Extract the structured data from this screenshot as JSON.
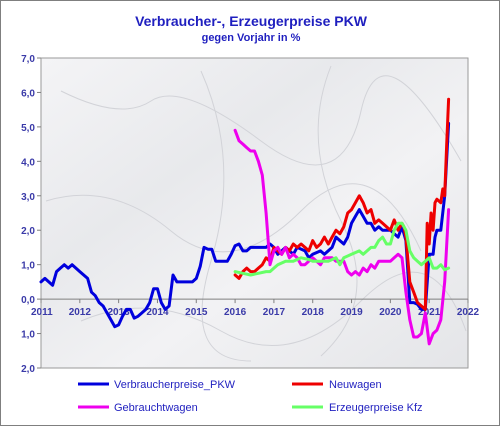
{
  "chart_data": {
    "type": "line",
    "title": "Verbraucher-, Erzeugerpreise PKW",
    "subtitle": "gegen Vorjahr in %",
    "ylim": [
      -2.0,
      7.0
    ],
    "y_ticks": [
      7.0,
      6.0,
      5.0,
      4.0,
      3.0,
      2.0,
      1.0,
      0.0,
      -1.0,
      -2.0
    ],
    "y_tick_labels": [
      "7,0",
      "6,0",
      "5,0",
      "4,0",
      "3,0",
      "2,0",
      "1,0",
      "0,0",
      "1,0",
      "2,0"
    ],
    "xlim": [
      2011,
      2022
    ],
    "x_ticks": [
      2011,
      2012,
      2013,
      2014,
      2015,
      2016,
      2017,
      2018,
      2019,
      2020,
      2021,
      2022
    ],
    "x_tick_labels": [
      "2011",
      "2012",
      "2013",
      "2014",
      "2015",
      "2016",
      "2017",
      "2018",
      "2019",
      "2020",
      "2021",
      "2022"
    ],
    "grid": false,
    "legend_position": "bottom",
    "series": [
      {
        "name": "Verbraucherpreise_PKW",
        "color": "#0000dd",
        "points": [
          [
            2011.0,
            0.5
          ],
          [
            2011.1,
            0.6
          ],
          [
            2011.2,
            0.5
          ],
          [
            2011.3,
            0.4
          ],
          [
            2011.4,
            0.8
          ],
          [
            2011.5,
            0.9
          ],
          [
            2011.6,
            1.0
          ],
          [
            2011.7,
            0.9
          ],
          [
            2011.8,
            1.0
          ],
          [
            2011.9,
            0.9
          ],
          [
            2012.0,
            0.8
          ],
          [
            2012.2,
            0.6
          ],
          [
            2012.3,
            0.2
          ],
          [
            2012.4,
            0.1
          ],
          [
            2012.5,
            -0.1
          ],
          [
            2012.6,
            -0.2
          ],
          [
            2012.7,
            -0.4
          ],
          [
            2012.8,
            -0.6
          ],
          [
            2012.9,
            -0.8
          ],
          [
            2013.0,
            -0.75
          ],
          [
            2013.1,
            -0.5
          ],
          [
            2013.2,
            -0.3
          ],
          [
            2013.3,
            -0.3
          ],
          [
            2013.4,
            -0.55
          ],
          [
            2013.5,
            -0.5
          ],
          [
            2013.6,
            -0.4
          ],
          [
            2013.7,
            -0.3
          ],
          [
            2013.8,
            -0.1
          ],
          [
            2013.9,
            0.3
          ],
          [
            2014.0,
            0.3
          ],
          [
            2014.1,
            -0.1
          ],
          [
            2014.2,
            -0.3
          ],
          [
            2014.3,
            -0.2
          ],
          [
            2014.4,
            0.7
          ],
          [
            2014.5,
            0.5
          ],
          [
            2014.7,
            0.5
          ],
          [
            2014.9,
            0.5
          ],
          [
            2015.0,
            0.6
          ],
          [
            2015.1,
            0.95
          ],
          [
            2015.2,
            1.5
          ],
          [
            2015.3,
            1.45
          ],
          [
            2015.4,
            1.45
          ],
          [
            2015.5,
            1.1
          ],
          [
            2015.6,
            1.1
          ],
          [
            2015.8,
            1.1
          ],
          [
            2015.9,
            1.3
          ],
          [
            2016.0,
            1.55
          ],
          [
            2016.1,
            1.6
          ],
          [
            2016.2,
            1.4
          ],
          [
            2016.3,
            1.4
          ],
          [
            2016.4,
            1.5
          ],
          [
            2016.6,
            1.5
          ],
          [
            2016.8,
            1.5
          ],
          [
            2016.9,
            1.6
          ],
          [
            2017.0,
            1.5
          ],
          [
            2017.1,
            1.3
          ],
          [
            2017.2,
            1.4
          ],
          [
            2017.3,
            1.5
          ],
          [
            2017.5,
            1.3
          ],
          [
            2017.6,
            1.5
          ],
          [
            2017.8,
            1.4
          ],
          [
            2017.9,
            1.2
          ],
          [
            2018.0,
            1.3
          ],
          [
            2018.2,
            1.4
          ],
          [
            2018.3,
            1.3
          ],
          [
            2018.5,
            1.5
          ],
          [
            2018.6,
            1.8
          ],
          [
            2018.7,
            1.7
          ],
          [
            2018.8,
            1.6
          ],
          [
            2018.9,
            1.8
          ],
          [
            2019.0,
            2.2
          ],
          [
            2019.1,
            2.4
          ],
          [
            2019.2,
            2.6
          ],
          [
            2019.3,
            2.4
          ],
          [
            2019.4,
            2.2
          ],
          [
            2019.5,
            2.2
          ],
          [
            2019.6,
            2.0
          ],
          [
            2019.7,
            2.1
          ],
          [
            2019.8,
            2.0
          ],
          [
            2019.9,
            2.0
          ],
          [
            2020.0,
            2.0
          ],
          [
            2020.1,
            1.9
          ],
          [
            2020.2,
            1.8
          ],
          [
            2020.3,
            2.1
          ],
          [
            2020.4,
            1.7
          ],
          [
            2020.5,
            -0.1
          ],
          [
            2020.6,
            -0.1
          ],
          [
            2020.7,
            -0.15
          ],
          [
            2020.8,
            -0.3
          ],
          [
            2020.9,
            -0.3
          ],
          [
            2021.0,
            1.3
          ],
          [
            2021.1,
            1.3
          ],
          [
            2021.15,
            1.8
          ],
          [
            2021.2,
            2.0
          ],
          [
            2021.3,
            2.0
          ],
          [
            2021.4,
            3.0
          ],
          [
            2021.5,
            5.1
          ]
        ]
      },
      {
        "name": "Neuwagen",
        "color": "#ee0000",
        "points": [
          [
            2016.0,
            0.7
          ],
          [
            2016.1,
            0.6
          ],
          [
            2016.2,
            0.8
          ],
          [
            2016.3,
            0.9
          ],
          [
            2016.4,
            0.8
          ],
          [
            2016.5,
            0.8
          ],
          [
            2016.6,
            0.9
          ],
          [
            2016.7,
            1.0
          ],
          [
            2016.8,
            1.2
          ],
          [
            2016.9,
            1.1
          ],
          [
            2017.0,
            1.5
          ],
          [
            2017.1,
            1.4
          ],
          [
            2017.2,
            1.3
          ],
          [
            2017.3,
            1.5
          ],
          [
            2017.4,
            1.4
          ],
          [
            2017.5,
            1.6
          ],
          [
            2017.6,
            1.5
          ],
          [
            2017.7,
            1.6
          ],
          [
            2017.8,
            1.5
          ],
          [
            2017.9,
            1.4
          ],
          [
            2018.0,
            1.7
          ],
          [
            2018.1,
            1.5
          ],
          [
            2018.2,
            1.6
          ],
          [
            2018.3,
            1.8
          ],
          [
            2018.4,
            1.6
          ],
          [
            2018.5,
            1.8
          ],
          [
            2018.6,
            2.0
          ],
          [
            2018.7,
            1.9
          ],
          [
            2018.8,
            2.1
          ],
          [
            2018.9,
            2.5
          ],
          [
            2019.0,
            2.6
          ],
          [
            2019.1,
            2.8
          ],
          [
            2019.2,
            3.0
          ],
          [
            2019.3,
            2.8
          ],
          [
            2019.4,
            2.5
          ],
          [
            2019.5,
            2.6
          ],
          [
            2019.6,
            2.2
          ],
          [
            2019.7,
            2.3
          ],
          [
            2019.8,
            2.2
          ],
          [
            2019.9,
            2.1
          ],
          [
            2020.0,
            2.0
          ],
          [
            2020.1,
            2.3
          ],
          [
            2020.2,
            2.0
          ],
          [
            2020.3,
            2.2
          ],
          [
            2020.35,
            2.1
          ],
          [
            2020.4,
            1.8
          ],
          [
            2020.5,
            0.5
          ],
          [
            2020.6,
            0.2
          ],
          [
            2020.7,
            -0.1
          ],
          [
            2020.8,
            -0.2
          ],
          [
            2020.9,
            -0.3
          ],
          [
            2020.95,
            2.2
          ],
          [
            2021.0,
            1.6
          ],
          [
            2021.05,
            2.5
          ],
          [
            2021.1,
            2.0
          ],
          [
            2021.15,
            2.8
          ],
          [
            2021.2,
            2.9
          ],
          [
            2021.3,
            2.8
          ],
          [
            2021.35,
            3.2
          ],
          [
            2021.4,
            3.0
          ],
          [
            2021.45,
            4.5
          ],
          [
            2021.5,
            5.8
          ]
        ]
      },
      {
        "name": "Gebrauchtwagen",
        "color": "#ee00ee",
        "points": [
          [
            2016.0,
            4.9
          ],
          [
            2016.1,
            4.6
          ],
          [
            2016.2,
            4.5
          ],
          [
            2016.3,
            4.4
          ],
          [
            2016.4,
            4.3
          ],
          [
            2016.5,
            4.3
          ],
          [
            2016.6,
            4.0
          ],
          [
            2016.7,
            3.6
          ],
          [
            2016.8,
            2.5
          ],
          [
            2016.9,
            1.0
          ],
          [
            2017.0,
            1.4
          ],
          [
            2017.1,
            1.5
          ],
          [
            2017.2,
            1.3
          ],
          [
            2017.3,
            1.5
          ],
          [
            2017.4,
            1.2
          ],
          [
            2017.5,
            1.3
          ],
          [
            2017.6,
            1.2
          ],
          [
            2017.7,
            1.0
          ],
          [
            2017.8,
            1.0
          ],
          [
            2017.9,
            1.1
          ],
          [
            2018.0,
            1.2
          ],
          [
            2018.1,
            1.1
          ],
          [
            2018.2,
            1.0
          ],
          [
            2018.3,
            1.2
          ],
          [
            2018.5,
            1.2
          ],
          [
            2018.6,
            1.1
          ],
          [
            2018.8,
            1.1
          ],
          [
            2018.9,
            0.8
          ],
          [
            2019.0,
            0.7
          ],
          [
            2019.1,
            0.8
          ],
          [
            2019.2,
            0.7
          ],
          [
            2019.3,
            0.9
          ],
          [
            2019.4,
            0.8
          ],
          [
            2019.5,
            1.0
          ],
          [
            2019.6,
            0.9
          ],
          [
            2019.7,
            1.1
          ],
          [
            2019.8,
            1.1
          ],
          [
            2019.9,
            1.1
          ],
          [
            2020.0,
            1.1
          ],
          [
            2020.1,
            1.2
          ],
          [
            2020.2,
            1.3
          ],
          [
            2020.3,
            1.2
          ],
          [
            2020.4,
            0.2
          ],
          [
            2020.5,
            -0.6
          ],
          [
            2020.6,
            -1.1
          ],
          [
            2020.7,
            -1.1
          ],
          [
            2020.8,
            -1.0
          ],
          [
            2020.9,
            -0.4
          ],
          [
            2021.0,
            -1.3
          ],
          [
            2021.1,
            -1.0
          ],
          [
            2021.2,
            -0.9
          ],
          [
            2021.3,
            -0.6
          ],
          [
            2021.4,
            0.5
          ],
          [
            2021.5,
            2.6
          ]
        ]
      },
      {
        "name": "Erzeugerpreise Kfz",
        "color": "#66ff66",
        "points": [
          [
            2016.0,
            0.8
          ],
          [
            2016.2,
            0.75
          ],
          [
            2016.4,
            0.7
          ],
          [
            2016.6,
            0.75
          ],
          [
            2016.8,
            0.8
          ],
          [
            2016.9,
            0.8
          ],
          [
            2017.0,
            0.9
          ],
          [
            2017.1,
            1.0
          ],
          [
            2017.3,
            1.1
          ],
          [
            2017.5,
            1.1
          ],
          [
            2017.7,
            1.2
          ],
          [
            2017.9,
            1.15
          ],
          [
            2018.0,
            1.1
          ],
          [
            2018.2,
            1.1
          ],
          [
            2018.4,
            1.1
          ],
          [
            2018.6,
            1.2
          ],
          [
            2018.7,
            1.0
          ],
          [
            2018.8,
            1.2
          ],
          [
            2019.0,
            1.3
          ],
          [
            2019.2,
            1.4
          ],
          [
            2019.3,
            1.3
          ],
          [
            2019.5,
            1.5
          ],
          [
            2019.6,
            1.5
          ],
          [
            2019.7,
            1.7
          ],
          [
            2019.8,
            1.8
          ],
          [
            2019.9,
            1.6
          ],
          [
            2020.0,
            1.6
          ],
          [
            2020.1,
            2.0
          ],
          [
            2020.2,
            2.2
          ],
          [
            2020.3,
            2.2
          ],
          [
            2020.4,
            2.0
          ],
          [
            2020.5,
            1.4
          ],
          [
            2020.6,
            1.2
          ],
          [
            2020.7,
            1.1
          ],
          [
            2020.8,
            1.0
          ],
          [
            2020.9,
            1.1
          ],
          [
            2021.0,
            1.2
          ],
          [
            2021.1,
            0.9
          ],
          [
            2021.2,
            0.9
          ],
          [
            2021.3,
            1.0
          ],
          [
            2021.4,
            0.85
          ],
          [
            2021.5,
            0.9
          ]
        ]
      }
    ]
  }
}
